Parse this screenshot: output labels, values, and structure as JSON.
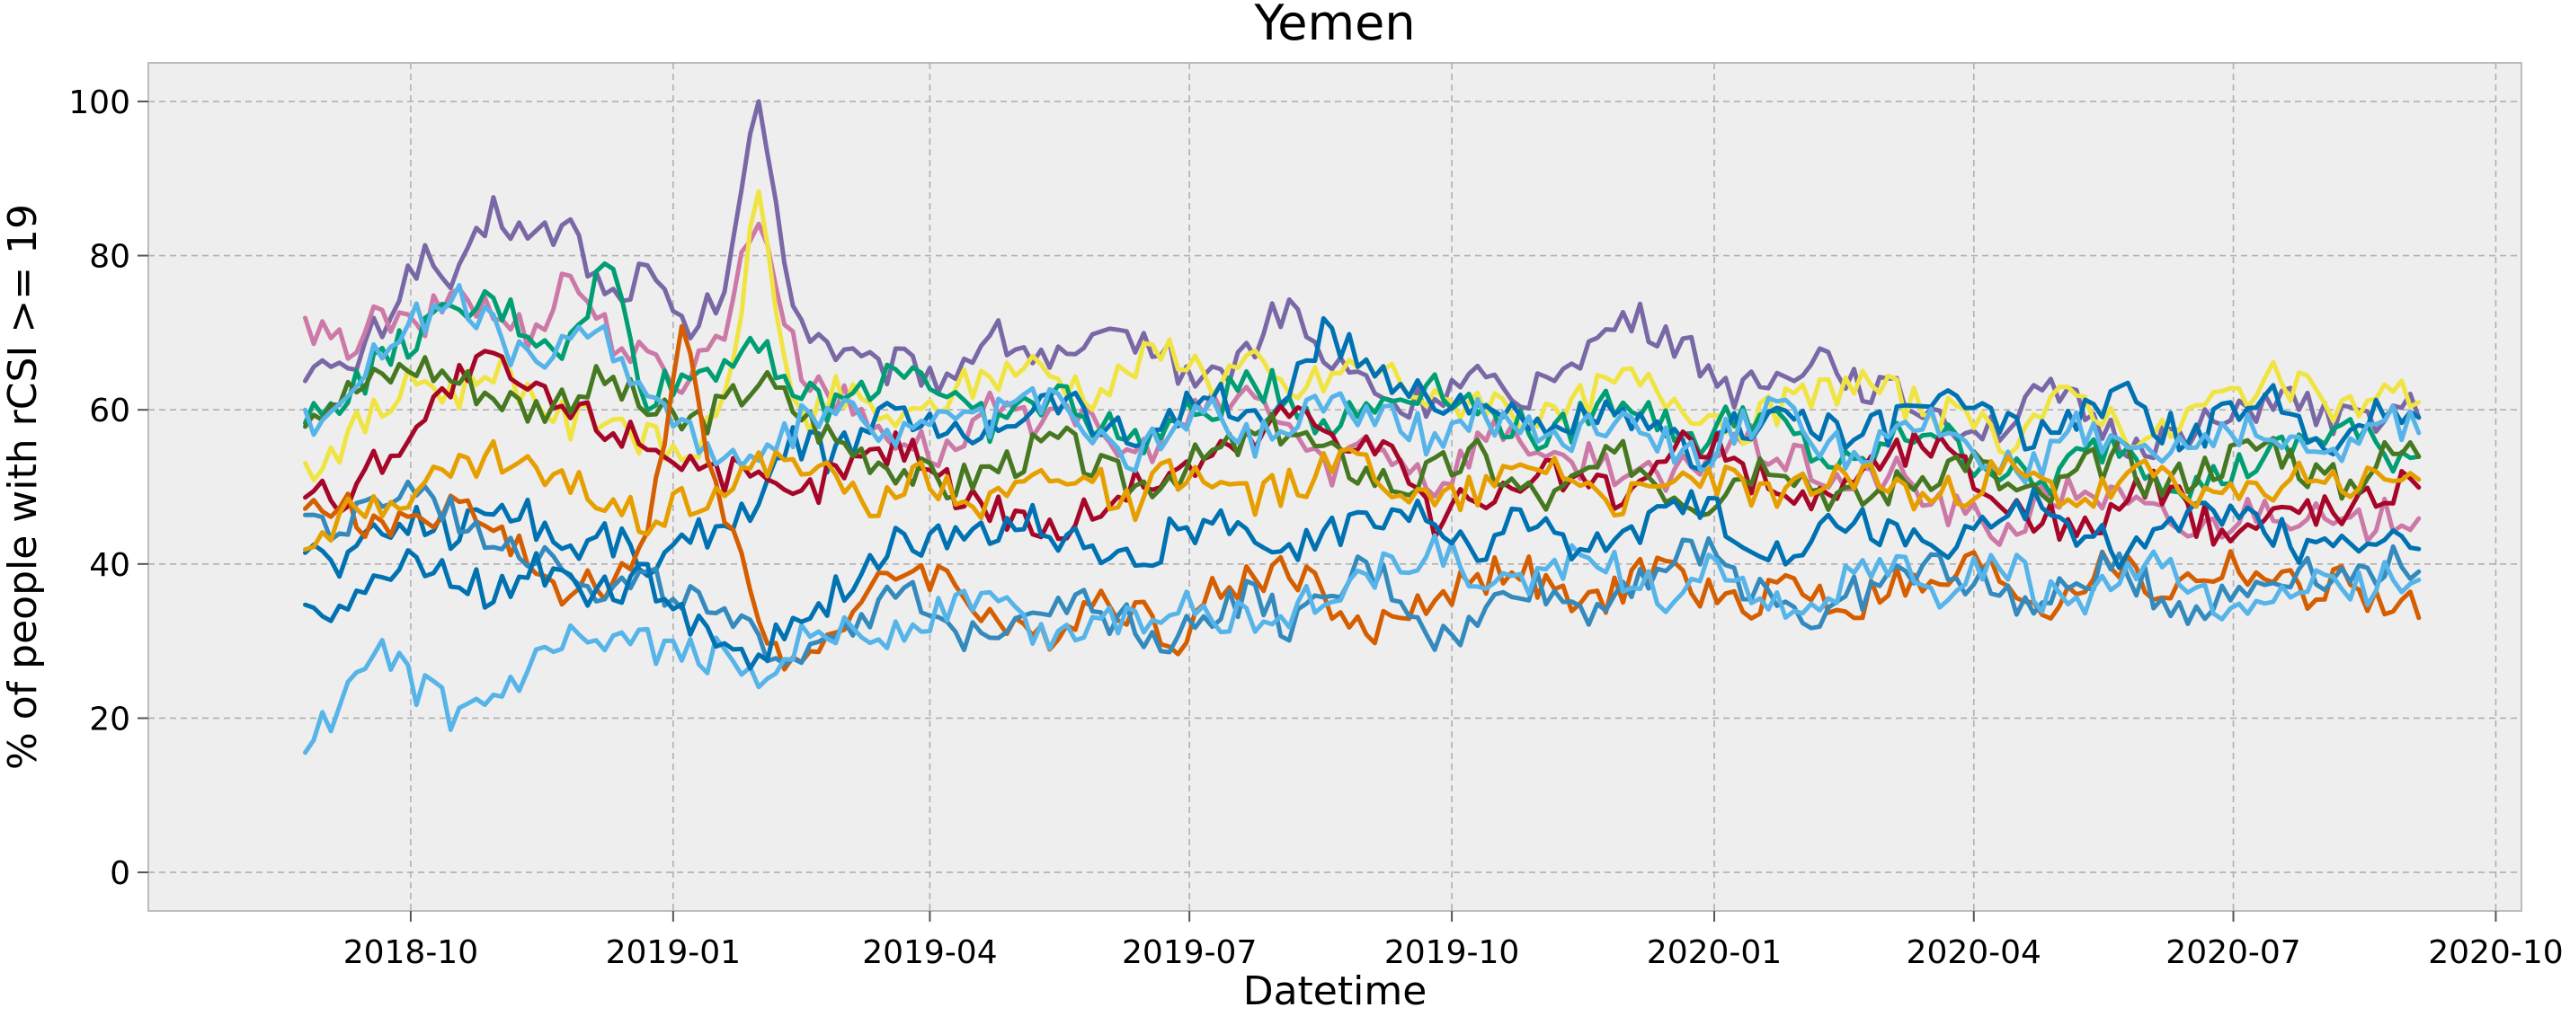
{
  "chart_data": {
    "type": "line",
    "title": "Yemen",
    "xlabel": "Datetime",
    "ylabel": "% of people with rCSI >= 19",
    "x_range": [
      "2018-07-01",
      "2020-10-10"
    ],
    "ylim": [
      -5,
      105
    ],
    "x_ticks": [
      {
        "date": "2018-10-01",
        "label": "2018-10"
      },
      {
        "date": "2019-01-01",
        "label": "2019-01"
      },
      {
        "date": "2019-04-01",
        "label": "2019-04"
      },
      {
        "date": "2019-07-01",
        "label": "2019-07"
      },
      {
        "date": "2019-10-01",
        "label": "2019-10"
      },
      {
        "date": "2020-01-01",
        "label": "2020-01"
      },
      {
        "date": "2020-04-01",
        "label": "2020-04"
      },
      {
        "date": "2020-07-01",
        "label": "2020-07"
      },
      {
        "date": "2020-10-01",
        "label": "2020-10"
      }
    ],
    "y_ticks": [
      0,
      20,
      40,
      60,
      80,
      100
    ],
    "grid": true,
    "legend": "none",
    "background": "#eeeeee",
    "x_start": "2018-08-25",
    "x_end": "2020-09-05",
    "sample_every_days": 3,
    "series": [
      {
        "color": "#7a68a6",
        "values": [
          66,
          64,
          71,
          80,
          76,
          86,
          82,
          84,
          74,
          78,
          70,
          74,
          100,
          72,
          68,
          65,
          66,
          64,
          70,
          68,
          66,
          68,
          70,
          66,
          64,
          68,
          74,
          66,
          64,
          60,
          62,
          64,
          60,
          66,
          68,
          72,
          70,
          66,
          62,
          64,
          68,
          64,
          62,
          60,
          58,
          58,
          62,
          60,
          56,
          56,
          58,
          58,
          62,
          60,
          58,
          60,
          60
        ]
      },
      {
        "color": "#cc79a7",
        "values": [
          70,
          68,
          72,
          70,
          76,
          72,
          70,
          78,
          70,
          66,
          64,
          70,
          86,
          66,
          62,
          58,
          56,
          54,
          60,
          58,
          62,
          56,
          54,
          58,
          60,
          62,
          58,
          52,
          56,
          54,
          50,
          56,
          58,
          52,
          54,
          52,
          50,
          54,
          56,
          54,
          52,
          50,
          52,
          48,
          46,
          44,
          48,
          50,
          48,
          46,
          44,
          46,
          48,
          46,
          44,
          46,
          47
        ]
      },
      {
        "color": "#f0e442",
        "values": [
          52,
          56,
          60,
          64,
          62,
          66,
          62,
          58,
          60,
          56,
          54,
          58,
          88,
          58,
          62,
          60,
          58,
          62,
          64,
          66,
          64,
          62,
          66,
          68,
          64,
          66,
          62,
          64,
          66,
          64,
          60,
          62,
          60,
          58,
          62,
          64,
          62,
          60,
          58,
          60,
          62,
          64,
          62,
          60,
          58,
          56,
          60,
          62,
          58,
          56,
          60,
          62,
          64,
          62,
          60,
          62,
          62
        ]
      },
      {
        "color": "#009e73",
        "values": [
          58,
          62,
          66,
          70,
          72,
          74,
          70,
          68,
          80,
          62,
          64,
          66,
          70,
          62,
          60,
          64,
          66,
          62,
          58,
          60,
          62,
          58,
          56,
          58,
          60,
          64,
          62,
          58,
          60,
          62,
          64,
          60,
          58,
          56,
          60,
          62,
          58,
          56,
          60,
          58,
          54,
          52,
          56,
          58,
          54,
          52,
          50,
          54,
          56,
          52,
          50,
          52,
          54,
          56,
          58,
          54,
          55
        ]
      },
      {
        "color": "#0072b2",
        "values": [
          42,
          40,
          44,
          46,
          44,
          48,
          46,
          42,
          44,
          40,
          42,
          46,
          48,
          56,
          54,
          58,
          60,
          56,
          58,
          60,
          62,
          58,
          56,
          60,
          62,
          58,
          62,
          70,
          66,
          64,
          60,
          62,
          58,
          56,
          60,
          58,
          56,
          54,
          58,
          60,
          58,
          56,
          58,
          62,
          60,
          58,
          56,
          60,
          62,
          58,
          56,
          60,
          62,
          58,
          56,
          60,
          60
        ]
      },
      {
        "color": "#a60628",
        "values": [
          50,
          48,
          54,
          58,
          64,
          66,
          62,
          60,
          58,
          56,
          54,
          52,
          50,
          48,
          52,
          54,
          56,
          50,
          48,
          46,
          44,
          48,
          50,
          52,
          54,
          56,
          60,
          58,
          56,
          54,
          44,
          50,
          48,
          52,
          50,
          48,
          54,
          56,
          52,
          50,
          48,
          52,
          54,
          56,
          52,
          48,
          46,
          44,
          48,
          50,
          46,
          44,
          46,
          48,
          46,
          50,
          51
        ]
      },
      {
        "color": "#467821",
        "values": [
          60,
          62,
          64,
          66,
          64,
          62,
          60,
          62,
          64,
          60,
          58,
          60,
          64,
          60,
          56,
          54,
          52,
          50,
          52,
          54,
          56,
          52,
          50,
          52,
          54,
          56,
          58,
          54,
          52,
          50,
          52,
          54,
          50,
          48,
          52,
          54,
          50,
          48,
          52,
          54,
          50,
          48,
          50,
          52,
          54,
          50,
          48,
          52,
          54,
          50,
          52,
          54,
          56,
          52,
          50,
          54,
          55
        ]
      },
      {
        "color": "#56b4e9",
        "values": [
          58,
          62,
          68,
          72,
          74,
          70,
          66,
          68,
          70,
          62,
          58,
          54,
          52,
          58,
          60,
          58,
          56,
          60,
          58,
          62,
          60,
          56,
          54,
          58,
          60,
          56,
          58,
          62,
          60,
          58,
          56,
          60,
          58,
          56,
          58,
          60,
          56,
          54,
          58,
          60,
          56,
          54,
          56,
          58,
          56,
          52,
          54,
          58,
          56,
          54,
          56,
          58,
          56,
          54,
          56,
          58,
          58
        ]
      },
      {
        "color": "#d55e00",
        "values": [
          46,
          48,
          44,
          46,
          48,
          44,
          40,
          36,
          38,
          42,
          70,
          48,
          34,
          26,
          32,
          36,
          40,
          38,
          34,
          30,
          32,
          36,
          34,
          30,
          36,
          38,
          40,
          36,
          30,
          34,
          36,
          38,
          40,
          36,
          34,
          38,
          40,
          36,
          34,
          38,
          36,
          34,
          38,
          36,
          40,
          38,
          34,
          38,
          40,
          36,
          38,
          40,
          38,
          36,
          38,
          34,
          34
        ]
      },
      {
        "color": "#348abd",
        "values": [
          46,
          44,
          48,
          50,
          46,
          44,
          42,
          40,
          36,
          38,
          36,
          32,
          30,
          28,
          32,
          34,
          36,
          30,
          32,
          34,
          36,
          34,
          32,
          30,
          34,
          36,
          32,
          34,
          40,
          36,
          30,
          32,
          38,
          36,
          34,
          38,
          40,
          42,
          38,
          36,
          32,
          36,
          38,
          40,
          38,
          36,
          34,
          38,
          40,
          36,
          34,
          36,
          38,
          40,
          38,
          40,
          40
        ]
      },
      {
        "color": "#56b4e9",
        "values": [
          16,
          22,
          28,
          24,
          20,
          22,
          26,
          30,
          28,
          30,
          28,
          28,
          26,
          30,
          32,
          30,
          32,
          34,
          36,
          32,
          30,
          34,
          32,
          36,
          34,
          32,
          34,
          36,
          38,
          40,
          42,
          38,
          36,
          40,
          42,
          38,
          36,
          40,
          38,
          34,
          36,
          38,
          40,
          36,
          38,
          40,
          36,
          34,
          38,
          40,
          36,
          32,
          36,
          38,
          36,
          38,
          39
        ]
      },
      {
        "color": "#0072b2",
        "values": [
          36,
          34,
          38,
          40,
          38,
          36,
          40,
          38,
          36,
          38,
          34,
          30,
          28,
          32,
          36,
          40,
          44,
          42,
          44,
          46,
          44,
          42,
          40,
          44,
          46,
          42,
          40,
          44,
          46,
          48,
          44,
          42,
          46,
          44,
          42,
          44,
          46,
          48,
          44,
          42,
          44,
          46,
          44,
          42,
          44,
          46,
          48,
          44,
          42,
          44,
          46,
          48,
          44,
          42,
          44,
          42,
          43
        ]
      },
      {
        "color": "#e69f00",
        "values": [
          44,
          46,
          48,
          50,
          52,
          54,
          52,
          50,
          48,
          46,
          48,
          50,
          52,
          54,
          50,
          48,
          52,
          50,
          48,
          50,
          52,
          50,
          48,
          52,
          50,
          48,
          50,
          52,
          54,
          50,
          48,
          50,
          52,
          54,
          50,
          48,
          50,
          52,
          50,
          48,
          50,
          52,
          50,
          48,
          50,
          52,
          50,
          48,
          50,
          52,
          50,
          48,
          50,
          52,
          50,
          51,
          52
        ]
      }
    ]
  }
}
